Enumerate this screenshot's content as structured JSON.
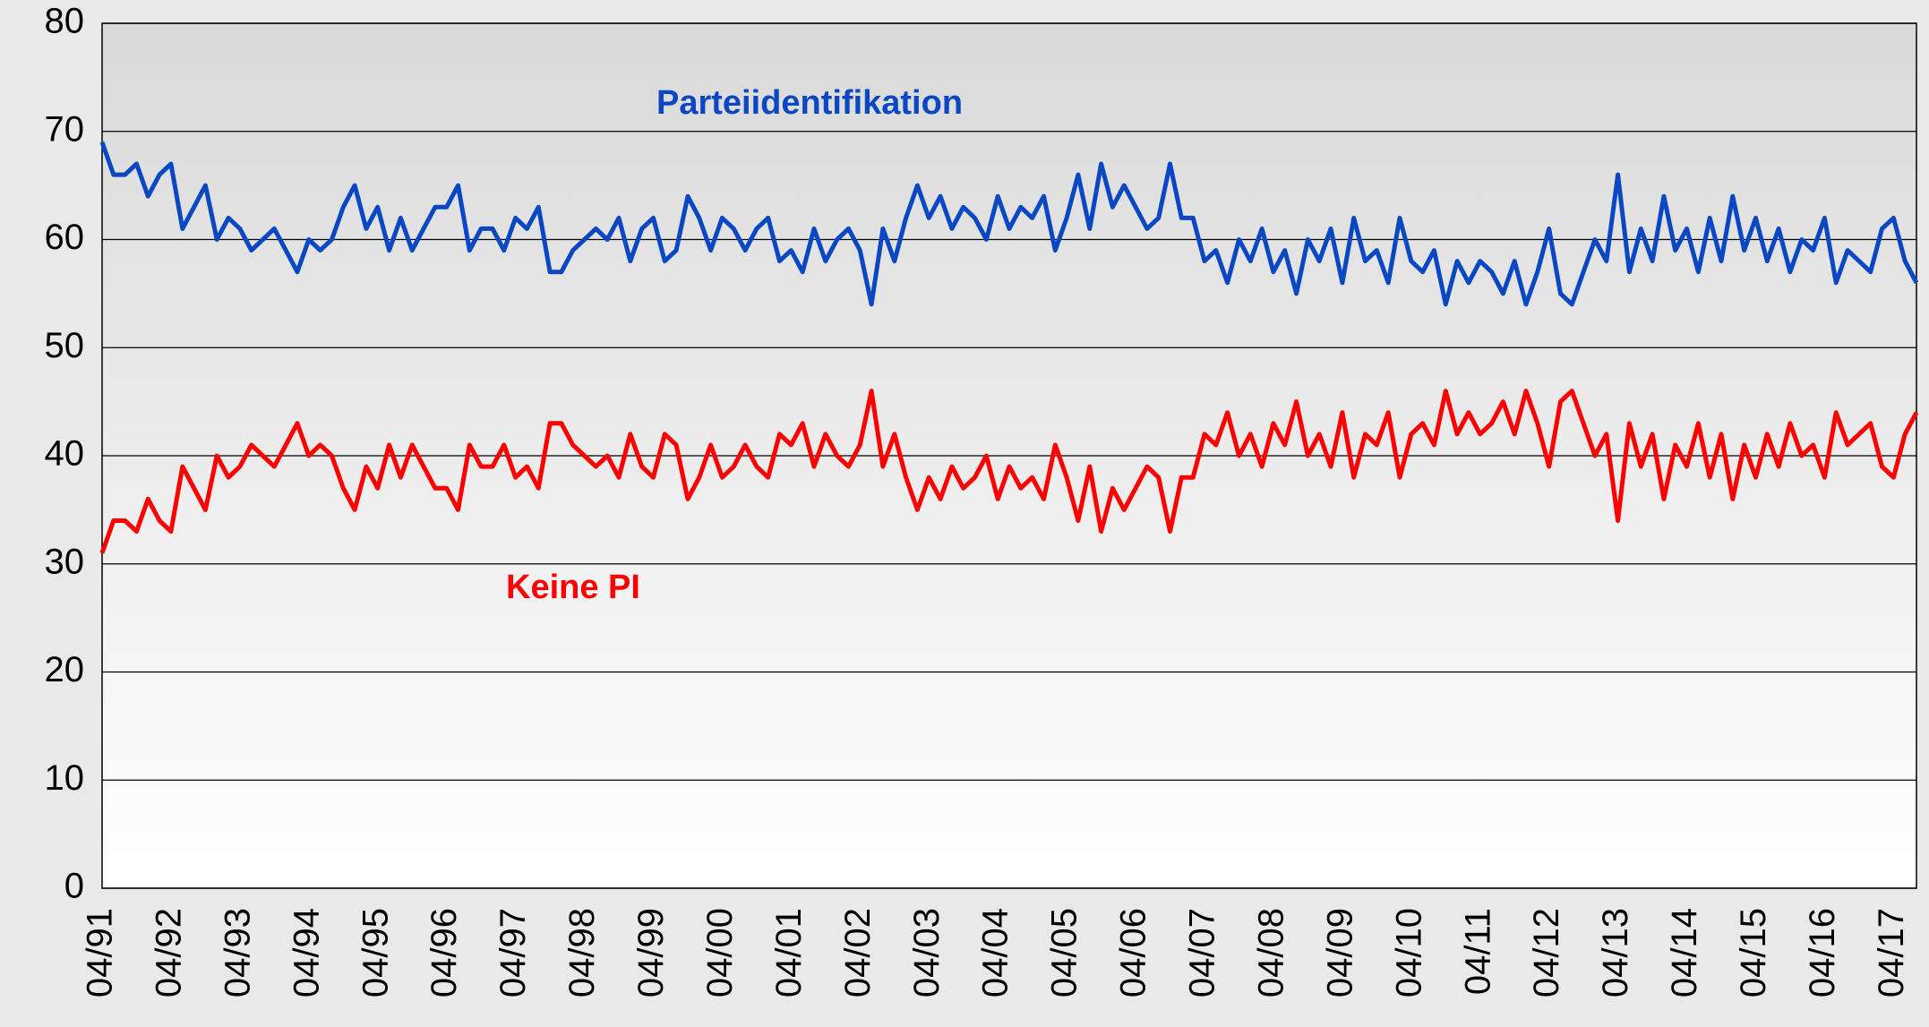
{
  "chart_data": {
    "type": "line",
    "categories": [
      "04/91",
      null,
      null,
      null,
      null,
      null,
      "04/92",
      null,
      null,
      null,
      null,
      null,
      "04/93",
      null,
      null,
      null,
      null,
      null,
      "04/94",
      null,
      null,
      null,
      null,
      null,
      "04/95",
      null,
      null,
      null,
      null,
      null,
      "04/96",
      null,
      null,
      null,
      null,
      null,
      "04/97",
      null,
      null,
      null,
      null,
      null,
      "04/98",
      null,
      null,
      null,
      null,
      null,
      "04/99",
      null,
      null,
      null,
      null,
      null,
      "04/00",
      null,
      null,
      null,
      null,
      null,
      "04/01",
      null,
      null,
      null,
      null,
      null,
      "04/02",
      null,
      null,
      null,
      null,
      null,
      "04/03",
      null,
      null,
      null,
      null,
      null,
      "04/04",
      null,
      null,
      null,
      null,
      null,
      "04/05",
      null,
      null,
      null,
      null,
      null,
      "04/06",
      null,
      null,
      null,
      null,
      null,
      "04/07",
      null,
      null,
      null,
      null,
      null,
      "04/08",
      null,
      null,
      null,
      null,
      null,
      "04/09",
      null,
      null,
      null,
      null,
      null,
      "04/10",
      null,
      null,
      null,
      null,
      null,
      "04/11",
      null,
      null,
      null,
      null,
      null,
      "04/12",
      null,
      null,
      null,
      null,
      null,
      "04/13",
      null,
      null,
      null,
      null,
      null,
      "04/14",
      null,
      null,
      null,
      null,
      null,
      "04/15",
      null,
      null,
      null,
      null,
      null,
      "04/16",
      null,
      null,
      null,
      null,
      null,
      "04/17",
      null,
      null
    ],
    "series": [
      {
        "name": "Parteiidentifikation",
        "color": "#0a47c2",
        "values": [
          69,
          66,
          66,
          67,
          64,
          66,
          67,
          61,
          63,
          65,
          60,
          62,
          61,
          59,
          60,
          61,
          59,
          57,
          60,
          59,
          60,
          63,
          65,
          61,
          63,
          59,
          62,
          59,
          61,
          63,
          63,
          65,
          59,
          61,
          61,
          59,
          62,
          61,
          63,
          57,
          57,
          59,
          60,
          61,
          60,
          62,
          58,
          61,
          62,
          58,
          59,
          64,
          62,
          59,
          62,
          61,
          59,
          61,
          62,
          58,
          59,
          57,
          61,
          58,
          60,
          61,
          59,
          54,
          61,
          58,
          62,
          65,
          62,
          64,
          61,
          63,
          62,
          60,
          64,
          61,
          63,
          62,
          64,
          59,
          62,
          66,
          61,
          67,
          63,
          65,
          63,
          61,
          62,
          67,
          62,
          62,
          58,
          59,
          56,
          60,
          58,
          61,
          57,
          59,
          55,
          60,
          58,
          61,
          56,
          62,
          58,
          59,
          56,
          62,
          58,
          57,
          59,
          54,
          58,
          56,
          58,
          57,
          55,
          58,
          54,
          57,
          61,
          55,
          54,
          57,
          60,
          58,
          66,
          57,
          61,
          58,
          64,
          59,
          61,
          57,
          62,
          58,
          64,
          59,
          62,
          58,
          61,
          57,
          60,
          59,
          62,
          56,
          59,
          58,
          57,
          61,
          62,
          58,
          56
        ]
      },
      {
        "name": "Keine PI",
        "color": "#ff0000",
        "values": [
          31,
          34,
          34,
          33,
          36,
          34,
          33,
          39,
          37,
          35,
          40,
          38,
          39,
          41,
          40,
          39,
          41,
          43,
          40,
          41,
          40,
          37,
          35,
          39,
          37,
          41,
          38,
          41,
          39,
          37,
          37,
          35,
          41,
          39,
          39,
          41,
          38,
          39,
          37,
          43,
          43,
          41,
          40,
          39,
          40,
          38,
          42,
          39,
          38,
          42,
          41,
          36,
          38,
          41,
          38,
          39,
          41,
          39,
          38,
          42,
          41,
          43,
          39,
          42,
          40,
          39,
          41,
          46,
          39,
          42,
          38,
          35,
          38,
          36,
          39,
          37,
          38,
          40,
          36,
          39,
          37,
          38,
          36,
          41,
          38,
          34,
          39,
          33,
          37,
          35,
          37,
          39,
          38,
          33,
          38,
          38,
          42,
          41,
          44,
          40,
          42,
          39,
          43,
          41,
          45,
          40,
          42,
          39,
          44,
          38,
          42,
          41,
          44,
          38,
          42,
          43,
          41,
          46,
          42,
          44,
          42,
          43,
          45,
          42,
          46,
          43,
          39,
          45,
          46,
          43,
          40,
          42,
          34,
          43,
          39,
          42,
          36,
          41,
          39,
          43,
          38,
          42,
          36,
          41,
          38,
          42,
          39,
          43,
          40,
          41,
          38,
          44,
          41,
          42,
          43,
          39,
          38,
          42,
          44
        ]
      }
    ],
    "ylim": [
      0,
      80
    ],
    "yticks": [
      0,
      10,
      20,
      30,
      40,
      50,
      60,
      70,
      80
    ],
    "grid": true
  }
}
